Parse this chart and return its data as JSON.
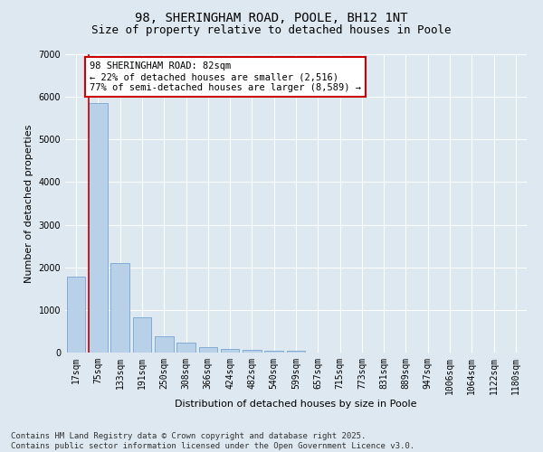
{
  "title_line1": "98, SHERINGHAM ROAD, POOLE, BH12 1NT",
  "title_line2": "Size of property relative to detached houses in Poole",
  "xlabel": "Distribution of detached houses by size in Poole",
  "ylabel": "Number of detached properties",
  "categories": [
    "17sqm",
    "75sqm",
    "133sqm",
    "191sqm",
    "250sqm",
    "308sqm",
    "366sqm",
    "424sqm",
    "482sqm",
    "540sqm",
    "599sqm",
    "657sqm",
    "715sqm",
    "773sqm",
    "831sqm",
    "889sqm",
    "947sqm",
    "1006sqm",
    "1064sqm",
    "1122sqm",
    "1180sqm"
  ],
  "values": [
    1780,
    5850,
    2100,
    830,
    380,
    230,
    130,
    90,
    70,
    50,
    50,
    0,
    0,
    0,
    0,
    0,
    0,
    0,
    0,
    0,
    0
  ],
  "bar_color": "#b8d0e8",
  "bar_edge_color": "#6699cc",
  "property_line_color": "#cc0000",
  "annotation_text": "98 SHERINGHAM ROAD: 82sqm\n← 22% of detached houses are smaller (2,516)\n77% of semi-detached houses are larger (8,589) →",
  "annotation_box_facecolor": "white",
  "annotation_box_edgecolor": "#cc0000",
  "background_color": "#dde8f0",
  "plot_background": "#dde8f0",
  "ylim": [
    0,
    7000
  ],
  "yticks": [
    0,
    1000,
    2000,
    3000,
    4000,
    5000,
    6000,
    7000
  ],
  "footer_line1": "Contains HM Land Registry data © Crown copyright and database right 2025.",
  "footer_line2": "Contains public sector information licensed under the Open Government Licence v3.0.",
  "title_fontsize": 10,
  "subtitle_fontsize": 9,
  "axis_label_fontsize": 8,
  "tick_fontsize": 7,
  "annotation_fontsize": 7.5,
  "footer_fontsize": 6.5
}
